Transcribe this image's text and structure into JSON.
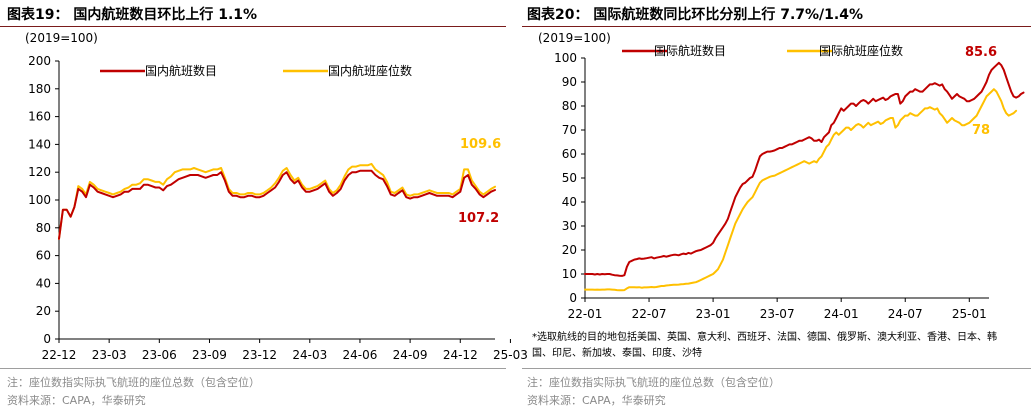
{
  "colors": {
    "red": "#c00000",
    "gold": "#ffc000",
    "title_rule": "#7a1b1b"
  },
  "left": {
    "title": "图表19：  国内航班数目环比上行 1.1%",
    "footnote": "注：座位数指实际执飞航班的座位总数（包含空位）",
    "source": "资料来源：CAPA，华泰研究"
  },
  "right": {
    "title": "图表20：  国际航班数同比环比分别上行 7.7%/1.4%",
    "note": "*选取航线的目的地包括美国、英国、意大利、西班牙、法国、德国、俄罗斯、澳大利亚、香港、日本、韩国、印尼、新加坡、泰国、印度、沙特",
    "footnote": "注：座位数指实际执飞航班的座位总数（包含空位）",
    "source": "资料来源：CAPA，华泰研究"
  },
  "chart_data": [
    {
      "type": "line",
      "unit_label": "(2019=100)",
      "ylim": [
        0,
        200
      ],
      "yticks": [
        0,
        20,
        40,
        60,
        80,
        100,
        120,
        140,
        160,
        180,
        200
      ],
      "x_ticklabels": [
        "22-12",
        "23-03",
        "23-06",
        "23-09",
        "23-12",
        "24-03",
        "24-06",
        "24-09",
        "24-12",
        "25-03"
      ],
      "x_range": [
        0,
        113
      ],
      "x_tick_positions": [
        0,
        13,
        26,
        39,
        52,
        65,
        78,
        91,
        104,
        117
      ],
      "legend": [
        "国内航班数目",
        "国内航班座位数"
      ],
      "series": [
        {
          "name": "国内航班数目",
          "color": "#c00000",
          "values": [
            72,
            93,
            93,
            88,
            95,
            108,
            106,
            102,
            111,
            109,
            106,
            105,
            104,
            103,
            102,
            103,
            104,
            106,
            106,
            108,
            108,
            108,
            111,
            111,
            110,
            109,
            109,
            107,
            110,
            111,
            113,
            115,
            116,
            117,
            118,
            118,
            118,
            117,
            116,
            117,
            118,
            118,
            120,
            114,
            106,
            103,
            103,
            102,
            102,
            103,
            103,
            102,
            102,
            103,
            105,
            107,
            109,
            113,
            118,
            120,
            115,
            112,
            114,
            109,
            106,
            106,
            107,
            108,
            110,
            112,
            106,
            103,
            105,
            108,
            114,
            118,
            120,
            120,
            121,
            121,
            121,
            121,
            118,
            116,
            115,
            110,
            104,
            103,
            105,
            107,
            102,
            101,
            102,
            102,
            103,
            104,
            105,
            104,
            103,
            103,
            103,
            103,
            102,
            104,
            106,
            116,
            118,
            111,
            108,
            104,
            102,
            104,
            106,
            107.2
          ]
        },
        {
          "name": "国内航班座位数",
          "color": "#ffc000",
          "values": [
            72,
            93,
            93,
            88,
            95,
            110,
            108,
            104,
            113,
            111,
            108,
            107,
            106,
            105,
            104,
            105,
            106,
            108,
            109,
            111,
            111,
            112,
            115,
            115,
            114,
            113,
            113,
            111,
            115,
            117,
            120,
            121,
            122,
            122,
            122,
            123,
            122,
            121,
            120,
            121,
            122,
            122,
            123,
            116,
            108,
            105,
            105,
            104,
            104,
            105,
            105,
            104,
            104,
            105,
            107,
            109,
            112,
            116,
            121,
            123,
            118,
            114,
            116,
            111,
            108,
            108,
            109,
            110,
            112,
            114,
            108,
            105,
            107,
            111,
            117,
            122,
            124,
            124,
            125,
            125,
            125,
            126,
            122,
            120,
            118,
            113,
            106,
            105,
            107,
            109,
            104,
            103,
            104,
            104,
            105,
            106,
            107,
            106,
            105,
            105,
            105,
            105,
            104,
            106,
            108,
            122,
            122,
            114,
            110,
            106,
            104,
            106,
            108,
            109.6
          ]
        }
      ],
      "annotations": [
        {
          "text": "109.6",
          "color": "#ffc000"
        },
        {
          "text": "107.2",
          "color": "#c00000"
        }
      ]
    },
    {
      "type": "line",
      "unit_label": "(2019=100)",
      "ylim": [
        0,
        100
      ],
      "yticks": [
        0,
        10,
        20,
        30,
        40,
        50,
        60,
        70,
        80,
        90,
        100
      ],
      "x_ticklabels": [
        "22-01",
        "22-07",
        "23-01",
        "23-07",
        "24-01",
        "24-07",
        "25-01"
      ],
      "x_range": [
        0,
        164
      ],
      "x_tick_positions": [
        0,
        26,
        52,
        78,
        104,
        130,
        156
      ],
      "legend": [
        "国际航班数目",
        "国际航班座位数"
      ],
      "series": [
        {
          "name": "国际航班数目",
          "color": "#c00000",
          "values": [
            10,
            10,
            10,
            10,
            9.8,
            10,
            9.8,
            10,
            9.9,
            10,
            10,
            9.7,
            9.5,
            9.4,
            9.3,
            9.2,
            9.5,
            13,
            15,
            15.5,
            16,
            16.2,
            16.5,
            16.3,
            16.4,
            16.6,
            16.8,
            17,
            16.5,
            16.8,
            17,
            17.2,
            17.5,
            17.2,
            17.5,
            17.8,
            18,
            18,
            17.8,
            18.2,
            18.5,
            18.3,
            18.8,
            18.5,
            19,
            19.5,
            19.8,
            20,
            20.5,
            21,
            21.5,
            22,
            23,
            25,
            26.5,
            28,
            29.5,
            31,
            33,
            36,
            39,
            42,
            44,
            46,
            47.5,
            48,
            49,
            50,
            50.5,
            53,
            56,
            59,
            60,
            60.5,
            61,
            61,
            61.2,
            61.5,
            62,
            62.5,
            62.5,
            63,
            63.5,
            64,
            64,
            64.5,
            65,
            65.5,
            65.5,
            66,
            66.5,
            67,
            66.5,
            65.5,
            65.5,
            66,
            65,
            67,
            68,
            69,
            72,
            73,
            75,
            77,
            79,
            78,
            79,
            80,
            81,
            81,
            80,
            81,
            82,
            82.5,
            82,
            81,
            82,
            83,
            82,
            82.5,
            83,
            83.5,
            82.5,
            83,
            84,
            84.5,
            85,
            85,
            81,
            82,
            84,
            85,
            86,
            86,
            87,
            86.5,
            86,
            86,
            87,
            88,
            89,
            89,
            89.5,
            89,
            88.5,
            89,
            87,
            86,
            84.5,
            83,
            84,
            85,
            84,
            83.5,
            83,
            82,
            82,
            82.5,
            83,
            84,
            85,
            86,
            88,
            90,
            93,
            95,
            96,
            97,
            98,
            97,
            95,
            92,
            89,
            86,
            84,
            83.5,
            84,
            85,
            85.6
          ]
        },
        {
          "name": "国际航班座位数",
          "color": "#ffc000",
          "values": [
            3.5,
            3.5,
            3.5,
            3.5,
            3.4,
            3.5,
            3.4,
            3.5,
            3.5,
            3.6,
            3.6,
            3.5,
            3.4,
            3.3,
            3.2,
            3.2,
            3.3,
            4,
            4.5,
            4.5,
            4.5,
            4.4,
            4.5,
            4.3,
            4.4,
            4.4,
            4.5,
            4.6,
            4.5,
            4.6,
            4.8,
            5,
            5,
            5.2,
            5.3,
            5.4,
            5.5,
            5.5,
            5.6,
            5.7,
            5.8,
            5.9,
            6,
            6.2,
            6.4,
            6.6,
            7,
            7.5,
            8,
            8.5,
            9,
            9.5,
            10,
            11,
            12,
            14,
            16,
            19,
            22,
            25,
            28,
            31,
            33,
            35,
            37,
            38.5,
            40,
            41,
            42,
            44,
            46,
            48,
            49,
            49.5,
            50,
            50.5,
            50.8,
            51,
            51.5,
            52,
            52.5,
            53,
            53.5,
            54,
            54.5,
            55,
            55.5,
            56,
            56.5,
            57,
            56.5,
            56,
            56.5,
            57,
            56.5,
            58,
            59,
            61,
            63,
            64,
            66,
            68,
            69,
            68,
            69,
            70,
            71,
            71,
            70,
            71,
            72,
            72.5,
            72,
            71,
            72,
            73,
            72,
            72.5,
            73,
            73.5,
            72.5,
            73,
            74,
            74.5,
            75,
            75,
            71,
            72,
            74,
            75,
            76,
            76,
            77,
            76.5,
            76,
            76,
            77,
            78,
            79,
            79,
            79.5,
            79,
            78.5,
            79,
            77,
            76,
            74.5,
            73,
            74,
            75,
            74,
            73.5,
            73,
            72,
            72,
            72.5,
            73,
            74,
            75,
            76,
            78,
            80,
            82,
            84,
            85,
            86,
            87,
            86,
            84,
            82,
            79,
            77,
            76,
            76.5,
            77,
            78
          ]
        }
      ],
      "annotations": [
        {
          "text": "85.6",
          "color": "#c00000"
        },
        {
          "text": "78",
          "color": "#ffc000"
        }
      ]
    }
  ]
}
